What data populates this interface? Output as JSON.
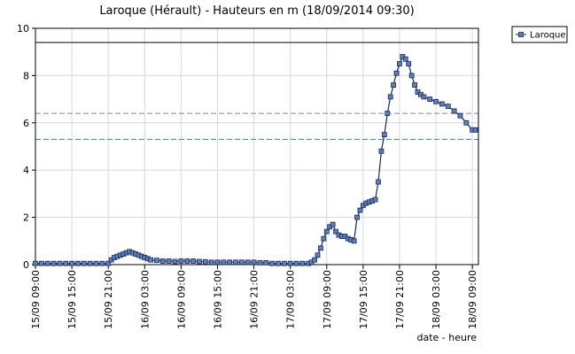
{
  "chart_data": {
    "type": "line",
    "title": "Laroque (Hérault) - Hauteurs en m (18/09/2014 09:30)",
    "x_label": "date - heure",
    "xlim": [
      0,
      73
    ],
    "ylim": [
      0,
      10
    ],
    "yticks": [
      0,
      2,
      4,
      6,
      8,
      10
    ],
    "xticks": [
      {
        "value": 0,
        "label": "15/09 09:00"
      },
      {
        "value": 6,
        "label": "15/09 15:00"
      },
      {
        "value": 12,
        "label": "15/09 21:00"
      },
      {
        "value": 18,
        "label": "16/09 03:00"
      },
      {
        "value": 24,
        "label": "16/09 09:00"
      },
      {
        "value": 30,
        "label": "16/09 15:00"
      },
      {
        "value": 36,
        "label": "16/09 21:00"
      },
      {
        "value": 42,
        "label": "17/09 03:00"
      },
      {
        "value": 48,
        "label": "17/09 09:00"
      },
      {
        "value": 54,
        "label": "17/09 15:00"
      },
      {
        "value": 60,
        "label": "17/09 21:00"
      },
      {
        "value": 66,
        "label": "18/09 03:00"
      },
      {
        "value": 72,
        "label": "18/09 09:00"
      }
    ],
    "grid": true,
    "legend": "top-right",
    "reference_lines": [
      {
        "value": 9.4,
        "color": "#000000",
        "dash": false
      },
      {
        "value": 6.4,
        "color": "#8c7fc0",
        "dash": true
      },
      {
        "value": 5.3,
        "color": "#3a8fc8",
        "dash": true
      }
    ],
    "series": [
      {
        "name": "Laroque",
        "color": "#1a2a5a",
        "marker_color": "#5b7fbf",
        "x": [
          0,
          1,
          2,
          3,
          4,
          5,
          6,
          7,
          8,
          9,
          10,
          11,
          12,
          12.5,
          13,
          13.5,
          14,
          14.5,
          15,
          15.5,
          16,
          16.5,
          17,
          17.5,
          18,
          18.5,
          19,
          20,
          21,
          22,
          23,
          24,
          25,
          26,
          27,
          28,
          29,
          30,
          31,
          32,
          33,
          34,
          35,
          36,
          37,
          38,
          39,
          40,
          41,
          42,
          43,
          44,
          45,
          45.5,
          46,
          46.5,
          47,
          47.5,
          48,
          48.5,
          49,
          49.5,
          50,
          50.5,
          51,
          51.5,
          52,
          52.5,
          53,
          53.5,
          54,
          54.5,
          55,
          55.5,
          56,
          56.5,
          57,
          57.5,
          58,
          58.5,
          59,
          59.5,
          60,
          60.5,
          61,
          61.5,
          62,
          62.5,
          63,
          63.5,
          64,
          65,
          66,
          67,
          68,
          69,
          70,
          71,
          72,
          72.5
        ],
        "values": [
          0.05,
          0.05,
          0.05,
          0.05,
          0.05,
          0.05,
          0.05,
          0.05,
          0.05,
          0.05,
          0.05,
          0.05,
          0.05,
          0.2,
          0.3,
          0.35,
          0.4,
          0.45,
          0.5,
          0.55,
          0.5,
          0.45,
          0.4,
          0.35,
          0.3,
          0.25,
          0.2,
          0.18,
          0.15,
          0.15,
          0.13,
          0.15,
          0.15,
          0.15,
          0.13,
          0.12,
          0.1,
          0.1,
          0.1,
          0.1,
          0.1,
          0.1,
          0.1,
          0.1,
          0.08,
          0.08,
          0.05,
          0.05,
          0.05,
          0.05,
          0.05,
          0.05,
          0.05,
          0.1,
          0.2,
          0.4,
          0.7,
          1.1,
          1.4,
          1.6,
          1.7,
          1.4,
          1.25,
          1.2,
          1.2,
          1.1,
          1.05,
          1.0,
          2.0,
          2.3,
          2.5,
          2.6,
          2.65,
          2.7,
          2.75,
          3.5,
          4.8,
          5.5,
          6.4,
          7.1,
          7.6,
          8.1,
          8.5,
          8.8,
          8.7,
          8.5,
          8.0,
          7.6,
          7.3,
          7.2,
          7.1,
          7.0,
          6.9,
          6.8,
          6.7,
          6.5,
          6.3,
          6.0,
          5.7,
          5.7
        ]
      }
    ]
  }
}
